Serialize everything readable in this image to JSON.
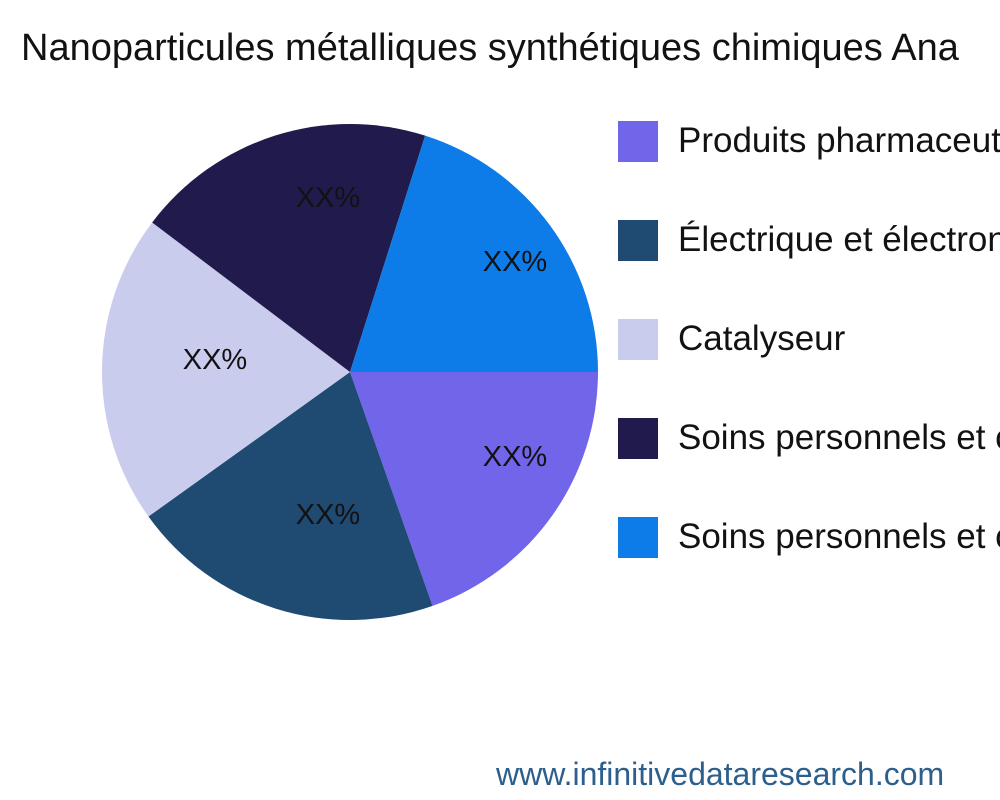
{
  "title": "Nanoparticules métalliques synthétiques chimiques Ana",
  "footer": {
    "url": "www.infinitivedataresearch.com",
    "color": "#2D5F8C"
  },
  "chart_data": {
    "type": "pie",
    "title": "Nanoparticules métalliques synthétiques chimiques Ana",
    "direction": "clockwise",
    "start_angle_deg": 0,
    "legend_position": "right",
    "value_placeholder": "XX%",
    "slices": [
      {
        "label": "Produits pharmaceuti",
        "value_label": "XX%",
        "fraction": 0.196,
        "color": "#7165EA"
      },
      {
        "label": "Électrique et électroni",
        "value_label": "XX%",
        "fraction": 0.205,
        "color": "#1F4A72"
      },
      {
        "label": "Catalyseur",
        "value_label": "XX%",
        "fraction": 0.202,
        "color": "#C9CCEC"
      },
      {
        "label": "Soins personnels et co",
        "value_label": "XX%",
        "fraction": 0.196,
        "color": "#211A4D"
      },
      {
        "label": "Soins personnels et co",
        "value_label": "XX%",
        "fraction": 0.201,
        "color": "#0E7CE8"
      }
    ]
  }
}
